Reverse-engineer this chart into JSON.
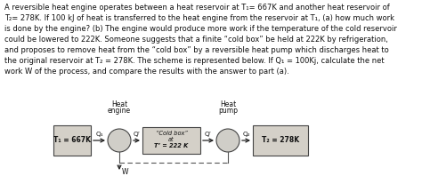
{
  "text_block": "A reversible heat engine operates between a heat reservoir at T₁= 667K and another heat reservoir of\nT₂= 278K. If 100 kJ of heat is transferred to the heat engine from the reservoir at T₁, (a) how much work\nis done by the engine? (b) The engine would produce more work if the temperature of the cold reservoir\ncould be lowered to 222K. Someone suggests that a finite “cold box” be held at 222K by refrigeration,\nand proposes to remove heat from the “cold box” by a reversible heat pump which discharges heat to\nthe original reservoir at T₂ = 278K. The scheme is represented below. If Q₁ = 100Kj, calculate the net\nwork W of the process, and compare the results with the answer to part (a).",
  "bg_color": "#ffffff",
  "box_color": "#d4d0c8",
  "box_edge_color": "#444444",
  "circle_color": "#d0cec8",
  "circle_edge": "#444444",
  "arrow_color": "#222222",
  "dashed_color": "#555555",
  "font_color": "#111111",
  "T1_label": "T₁ = 667K",
  "T2_label": "T₂ = 278K",
  "cold_box_line1": "“Cold box”",
  "cold_box_line2": "at",
  "cold_box_line3": "T’ = 222 K",
  "heat_engine_line1": "Heat",
  "heat_engine_line2": "engine",
  "heat_pump_line1": "Heat",
  "heat_pump_line2": "pump",
  "Q1_label": "Q₁",
  "Qprime_label1": "Q’",
  "Qprime_label2": "Q’",
  "Q2_label": "Q₂",
  "W_label": "W",
  "figsize": [
    4.74,
    2.16
  ],
  "dpi": 100
}
